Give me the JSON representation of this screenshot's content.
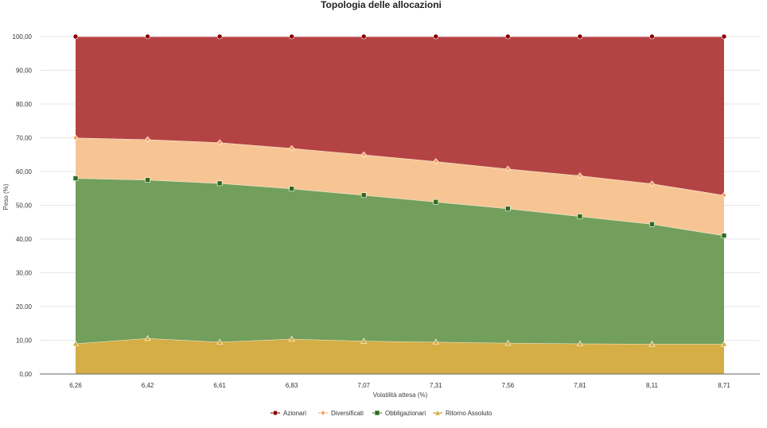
{
  "chart_data": {
    "type": "area",
    "stacked": true,
    "title": "Topologia delle allocazioni",
    "xlabel": "Volatilità attesa (%)",
    "ylabel": "Peso (%)",
    "ylim": [
      0,
      100
    ],
    "y_ticks": [
      "0,00",
      "10,00",
      "20,00",
      "30,00",
      "40,00",
      "50,00",
      "60,00",
      "70,00",
      "80,00",
      "90,00",
      "100,00"
    ],
    "categories": [
      "6,26",
      "6,42",
      "6,61",
      "6,83",
      "7,07",
      "7,31",
      "7,56",
      "7,81",
      "8,11",
      "8,71"
    ],
    "grid": true,
    "legend_position": "bottom-center",
    "series": [
      {
        "name": "Ritorno Assoluto",
        "marker": "triangle",
        "color": "#D4AA3C",
        "values": [
          9.0,
          10.6,
          9.5,
          10.4,
          9.8,
          9.5,
          9.2,
          9.0,
          8.9,
          8.9
        ]
      },
      {
        "name": "Obbligazionari",
        "marker": "square",
        "color": "#6A9A52",
        "values": [
          49.0,
          46.9,
          47.0,
          44.5,
          43.2,
          41.5,
          39.8,
          37.7,
          35.5,
          32.1
        ]
      },
      {
        "name": "Diversificati",
        "marker": "diamond",
        "color": "#F7C28E",
        "values": [
          12.0,
          12.0,
          12.1,
          12.0,
          12.0,
          12.0,
          11.8,
          12.1,
          12.0,
          12.0
        ]
      },
      {
        "name": "Azionari",
        "marker": "circle",
        "color": "#B03A3A",
        "values": [
          30.0,
          30.5,
          31.4,
          33.1,
          35.0,
          37.0,
          39.2,
          41.2,
          43.6,
          47.0
        ]
      }
    ],
    "legend_order": [
      "Azionari",
      "Diversificati",
      "Obbligazionari",
      "Ritorno Assoluto"
    ],
    "colors": {
      "Azionari_marker": "#8B0000",
      "Diversificati_marker": "#F4A460",
      "Obbligazionari_marker": "#2E6B1E",
      "Ritorno Assoluto_marker": "#D4AA3C"
    }
  }
}
